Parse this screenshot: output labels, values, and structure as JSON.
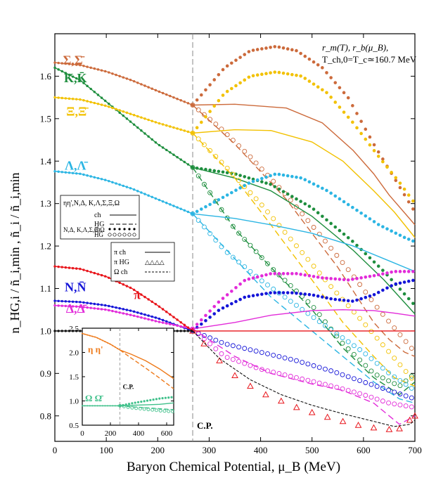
{
  "chart_data": {
    "type": "line",
    "xlabel": "Baryon Chemical Potential, μ_B (MeV)",
    "ylabel": "n_HG,i / ñ_i,min  ,  ñ_i / ñ_i,min",
    "xlim": [
      0,
      700
    ],
    "ylim": [
      0.74,
      1.7
    ],
    "xticks": [
      0,
      100,
      200,
      300,
      400,
      500,
      600,
      700
    ],
    "yticks": [
      0.8,
      0.9,
      1.0,
      1.1,
      1.2,
      1.3,
      1.4,
      1.5,
      1.6
    ],
    "critical_point": {
      "x": 268,
      "label": "C.P."
    },
    "annotation": [
      "r_m(T), r_b(μ_B),",
      "T_ch,0=T_c≃160.7 MeV"
    ],
    "legend": {
      "placement": "middle-left",
      "group1_names": [
        "ηη',N,Δ,",
        "K,Λ,Σ,Ξ,Ω"
      ],
      "group1_rows": [
        {
          "label": "ch",
          "style": "solid"
        },
        {
          "label": "HG",
          "style": "dashed"
        }
      ],
      "group2_names": [
        "N,Δ,",
        "K,Λ,Σ,Ξ,Ω"
      ],
      "group2_rows": [
        {
          "label": "ch",
          "style": "dots"
        },
        {
          "label": "HG",
          "style": "circles"
        }
      ],
      "group3_rows": [
        {
          "label": "π  ch",
          "style": "solid"
        },
        {
          "label": "π HG",
          "style": "triangles",
          "marks": "△△△△"
        },
        {
          "label": "Ω  ch",
          "style": "short-dash"
        }
      ]
    },
    "series": [
      {
        "name": "Σ,Σ̄",
        "color": "#cc6a3b",
        "label_x": 35,
        "label_y": 1.628,
        "low": {
          "x": [
            0,
            50,
            100,
            150,
            200,
            268
          ],
          "y": [
            1.632,
            1.626,
            1.611,
            1.59,
            1.565,
            1.532
          ]
        },
        "ch": {
          "x": [
            268,
            350,
            450,
            520,
            580,
            620,
            650,
            700
          ],
          "y": [
            1.532,
            1.534,
            1.525,
            1.49,
            1.425,
            1.37,
            1.32,
            1.25
          ]
        },
        "hg": {
          "x": [
            268,
            350,
            450,
            550,
            620,
            650,
            680,
            700
          ],
          "y": [
            1.532,
            1.44,
            1.31,
            1.15,
            1.02,
            0.98,
            0.95,
            0.94
          ]
        },
        "chdots": {
          "x": [
            268,
            330,
            380,
            430,
            470,
            520,
            570,
            620,
            650,
            700
          ],
          "y": [
            1.532,
            1.62,
            1.66,
            1.67,
            1.66,
            1.62,
            1.55,
            1.44,
            1.38,
            1.28
          ]
        },
        "hgcircles": {
          "x": [
            268,
            320,
            380,
            450,
            520,
            580,
            630,
            700
          ],
          "y": [
            1.532,
            1.48,
            1.41,
            1.32,
            1.22,
            1.13,
            1.05,
            0.95
          ]
        }
      },
      {
        "name": "K,K̄",
        "color": "#1e8e3e",
        "label_x": 40,
        "label_y": 1.586,
        "low": {
          "x": [
            0,
            50,
            100,
            150,
            200,
            268
          ],
          "y": [
            1.62,
            1.59,
            1.54,
            1.49,
            1.44,
            1.385
          ]
        },
        "ch": {
          "x": [
            268,
            350,
            420,
            500,
            580,
            640,
            700
          ],
          "y": [
            1.385,
            1.36,
            1.33,
            1.27,
            1.19,
            1.12,
            1.04
          ]
        },
        "hg": {
          "x": [
            268,
            350,
            420,
            500,
            560,
            620,
            670,
            700
          ],
          "y": [
            1.385,
            1.24,
            1.15,
            1.05,
            0.96,
            0.89,
            0.85,
            0.88
          ]
        },
        "chdots": {
          "x": [
            268,
            350,
            420,
            500,
            580,
            640,
            700
          ],
          "y": [
            1.385,
            1.37,
            1.345,
            1.29,
            1.21,
            1.14,
            1.06
          ]
        },
        "hgcircles": {
          "x": [
            268,
            350,
            420,
            500,
            560,
            620,
            670,
            700
          ],
          "y": [
            1.385,
            1.24,
            1.15,
            1.06,
            0.97,
            0.9,
            0.87,
            0.9
          ]
        }
      },
      {
        "name": "Ξ,Ξ̄",
        "color": "#f2c100",
        "label_x": 42,
        "label_y": 1.507,
        "low": {
          "x": [
            0,
            50,
            100,
            150,
            200,
            268
          ],
          "y": [
            1.55,
            1.545,
            1.53,
            1.51,
            1.49,
            1.466
          ]
        },
        "ch": {
          "x": [
            268,
            350,
            420,
            500,
            560,
            620,
            660,
            700
          ],
          "y": [
            1.466,
            1.474,
            1.472,
            1.445,
            1.4,
            1.33,
            1.28,
            1.22
          ]
        },
        "hg": {
          "x": [
            268,
            350,
            420,
            500,
            560,
            620,
            660,
            700
          ],
          "y": [
            1.466,
            1.36,
            1.25,
            1.12,
            1.02,
            0.94,
            0.89,
            0.87
          ]
        },
        "chdots": {
          "x": [
            268,
            330,
            380,
            430,
            480,
            530,
            580,
            630,
            670,
            700
          ],
          "y": [
            1.466,
            1.56,
            1.6,
            1.61,
            1.6,
            1.56,
            1.49,
            1.41,
            1.35,
            1.3
          ]
        },
        "hgcircles": {
          "x": [
            268,
            330,
            400,
            470,
            540,
            600,
            650,
            700
          ],
          "y": [
            1.466,
            1.39,
            1.3,
            1.2,
            1.1,
            1.02,
            0.95,
            0.88
          ]
        }
      },
      {
        "name": "Λ,Λ̄",
        "color": "#2bb5e3",
        "label_x": 40,
        "label_y": 1.38,
        "low": {
          "x": [
            0,
            50,
            100,
            150,
            200,
            268
          ],
          "y": [
            1.376,
            1.37,
            1.355,
            1.335,
            1.31,
            1.276
          ]
        },
        "ch": {
          "x": [
            268,
            350,
            420,
            500,
            580,
            640,
            700
          ],
          "y": [
            1.276,
            1.265,
            1.25,
            1.23,
            1.2,
            1.17,
            1.14
          ]
        },
        "hg": {
          "x": [
            268,
            350,
            420,
            500,
            560,
            620,
            670,
            700
          ],
          "y": [
            1.276,
            1.17,
            1.08,
            1.0,
            0.94,
            0.88,
            0.84,
            0.83
          ]
        },
        "chdots": {
          "x": [
            268,
            320,
            380,
            430,
            480,
            530,
            580,
            630,
            680,
            700
          ],
          "y": [
            1.276,
            1.31,
            1.35,
            1.37,
            1.36,
            1.33,
            1.29,
            1.25,
            1.22,
            1.21
          ]
        },
        "hgcircles": {
          "x": [
            268,
            330,
            400,
            470,
            540,
            600,
            650,
            700
          ],
          "y": [
            1.276,
            1.19,
            1.12,
            1.06,
            1.0,
            0.95,
            0.9,
            0.86
          ]
        }
      },
      {
        "name": "N,N̄",
        "color": "#1515d8",
        "label_x": 40,
        "label_y": 1.093,
        "low": {
          "x": [
            0,
            50,
            100,
            150,
            200,
            268
          ],
          "y": [
            1.071,
            1.068,
            1.06,
            1.047,
            1.03,
            1.0
          ]
        },
        "chdots": {
          "x": [
            268,
            320,
            370,
            420,
            460,
            500,
            540,
            580,
            620,
            660,
            700
          ],
          "y": [
            1.0,
            1.05,
            1.08,
            1.09,
            1.09,
            1.085,
            1.075,
            1.07,
            1.085,
            1.11,
            1.12
          ]
        },
        "hgcircles": {
          "x": [
            268,
            330,
            400,
            470,
            540,
            600,
            650,
            700
          ],
          "y": [
            1.0,
            0.97,
            0.95,
            0.93,
            0.905,
            0.88,
            0.86,
            0.84
          ]
        }
      },
      {
        "name": "Δ,Δ̄",
        "color": "#e22bd9",
        "label_x": 40,
        "label_y": 1.043,
        "low": {
          "x": [
            0,
            50,
            100,
            150,
            200,
            268
          ],
          "y": [
            1.06,
            1.057,
            1.05,
            1.037,
            1.022,
            1.005
          ]
        },
        "ch": {
          "x": [
            268,
            350,
            420,
            500,
            560,
            620,
            660,
            700
          ],
          "y": [
            1.005,
            1.02,
            1.037,
            1.048,
            1.05,
            1.048,
            1.042,
            1.035
          ]
        },
        "hg": {
          "x": [
            268,
            350,
            420,
            500,
            560,
            620,
            670,
            700
          ],
          "y": [
            1.005,
            0.94,
            0.9,
            0.875,
            0.86,
            0.83,
            0.78,
            0.8
          ]
        },
        "chdots": {
          "x": [
            268,
            320,
            370,
            420,
            470,
            520,
            570,
            620,
            660,
            700
          ],
          "y": [
            1.005,
            1.07,
            1.12,
            1.135,
            1.135,
            1.125,
            1.12,
            1.13,
            1.14,
            1.14
          ]
        },
        "hgcircles": {
          "x": [
            268,
            330,
            400,
            470,
            540,
            600,
            650,
            700
          ],
          "y": [
            1.005,
            0.94,
            0.91,
            0.89,
            0.87,
            0.85,
            0.83,
            0.82
          ]
        }
      },
      {
        "name": "π",
        "color": "#e8151b",
        "label_x": 160,
        "label_y": 1.075,
        "low": {
          "x": [
            0,
            50,
            100,
            150,
            200,
            268
          ],
          "y": [
            1.152,
            1.146,
            1.128,
            1.1,
            1.06,
            1.0
          ]
        },
        "ch": {
          "x": [
            268,
            700
          ],
          "y": [
            1.0,
            1.0
          ]
        },
        "hgtriangles": {
          "x": [
            268,
            290,
            320,
            350,
            380,
            410,
            440,
            470,
            500,
            530,
            560,
            590,
            620,
            650,
            670,
            690,
            700
          ],
          "y": [
            1.0,
            0.97,
            0.93,
            0.895,
            0.87,
            0.85,
            0.835,
            0.82,
            0.808,
            0.797,
            0.787,
            0.778,
            0.772,
            0.768,
            0.77,
            0.79,
            0.8
          ]
        }
      },
      {
        "name": "Ω ch (black)",
        "color": "#111111",
        "low": {
          "x": [
            0,
            268
          ],
          "y": [
            1.0,
            1.0
          ]
        },
        "hgcurve": {
          "x": [
            268,
            320,
            380,
            440,
            500,
            560,
            620,
            660,
            690,
            700
          ],
          "y": [
            1.0,
            0.935,
            0.885,
            0.85,
            0.825,
            0.805,
            0.787,
            0.775,
            0.78,
            0.79
          ]
        }
      }
    ],
    "inset": {
      "xlim": [
        0,
        650
      ],
      "ylim": [
        0.5,
        2.5
      ],
      "xticks": [
        0,
        200,
        400,
        600
      ],
      "yticks": [
        0.5,
        1.0,
        1.5,
        2.0,
        2.5
      ],
      "critical_point": {
        "x": 268,
        "label": "C.P."
      },
      "series": [
        {
          "name": "η η'",
          "color": "#ee7a1a",
          "label_x": 40,
          "label_y": 2.0,
          "low": {
            "x": [
              0,
              100,
              200,
              268
            ],
            "y": [
              2.39,
              2.31,
              2.17,
              2.05
            ]
          },
          "ch": {
            "x": [
              268,
              350,
              450,
              550,
              650
            ],
            "y": [
              2.05,
              1.96,
              1.83,
              1.66,
              1.46
            ]
          },
          "hg": {
            "x": [
              268,
              350,
              450,
              550,
              650
            ],
            "y": [
              2.05,
              1.88,
              1.68,
              1.47,
              1.25
            ]
          }
        },
        {
          "name": "Ω Ω̄",
          "color": "#3fc08a",
          "label_x": 20,
          "label_y": 0.99,
          "low": {
            "x": [
              0,
              100,
              200,
              268
            ],
            "y": [
              0.9,
              0.9,
              0.9,
              0.9
            ]
          },
          "ch": {
            "x": [
              268,
              350,
              450,
              550,
              650
            ],
            "y": [
              0.9,
              0.91,
              0.92,
              0.93,
              0.96
            ]
          },
          "hg": {
            "x": [
              268,
              350,
              450,
              550,
              650
            ],
            "y": [
              0.9,
              0.88,
              0.86,
              0.84,
              0.82
            ]
          },
          "chdots": {
            "x": [
              268,
              350,
              450,
              550,
              650
            ],
            "y": [
              0.9,
              0.95,
              1.0,
              1.05,
              1.08
            ]
          },
          "hgcircles": {
            "x": [
              268,
              350,
              450,
              550,
              650
            ],
            "y": [
              0.9,
              0.86,
              0.83,
              0.8,
              0.78
            ]
          }
        }
      ]
    }
  }
}
